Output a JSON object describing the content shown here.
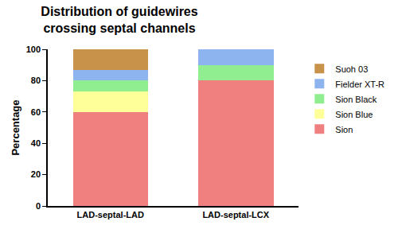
{
  "chart_data": {
    "type": "bar",
    "stacked": true,
    "title": "Distribution of guidewires crossing septal channels",
    "y_label": "Percentage",
    "categories": [
      "LAD-septal-LAD",
      "LAD-septal-LCX"
    ],
    "series": [
      {
        "name": "Sion",
        "color": "#f08080",
        "values": [
          60,
          80
        ]
      },
      {
        "name": "Sion Blue",
        "color": "#ffff99",
        "values": [
          13,
          0
        ]
      },
      {
        "name": "Sion Black",
        "color": "#90ee90",
        "values": [
          7,
          10
        ]
      },
      {
        "name": "Fielder XT-R",
        "color": "#8eb4f0",
        "values": [
          7,
          10
        ]
      },
      {
        "name": "Suoh 03",
        "color": "#c8924a",
        "values": [
          13,
          0
        ]
      }
    ],
    "ylim": [
      0,
      100
    ],
    "yticks": [
      0,
      20,
      40,
      60,
      80,
      100
    ],
    "grid": false,
    "legend": "right"
  }
}
